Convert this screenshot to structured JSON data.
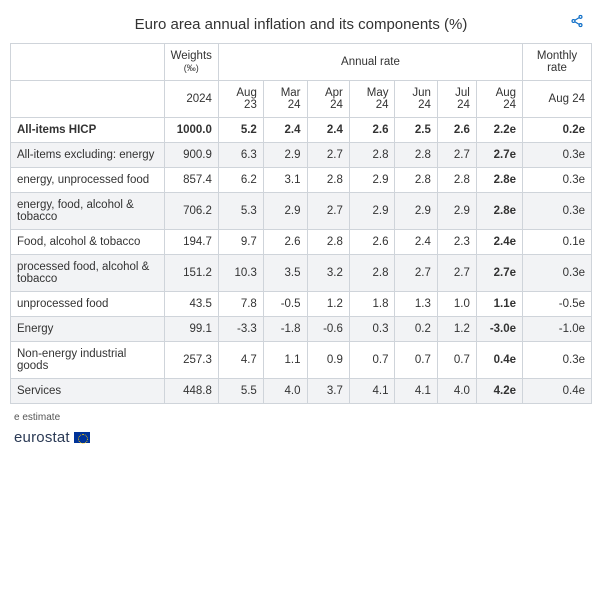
{
  "title": "Euro area annual inflation and its components (%)",
  "share_icon": "share-icon",
  "header": {
    "weights_label": "Weights",
    "weights_unit": "(‰)",
    "annual_label": "Annual rate",
    "monthly_label": "Monthly rate",
    "year": "2024",
    "periods": [
      "Aug 23",
      "Mar 24",
      "Apr 24",
      "May 24",
      "Jun 24",
      "Jul 24",
      "Aug 24"
    ],
    "monthly_period": "Aug 24"
  },
  "rows": [
    {
      "label": "All-items HICP",
      "bold": true,
      "weight": "1000.0",
      "values": [
        "5.2",
        "2.4",
        "2.4",
        "2.6",
        "2.5",
        "2.6",
        "2.2e"
      ],
      "monthly": "0.2e",
      "stripe": "even"
    },
    {
      "label": "All-items excluding: energy",
      "bold": false,
      "weight": "900.9",
      "values": [
        "6.3",
        "2.9",
        "2.7",
        "2.8",
        "2.8",
        "2.7",
        "2.7e"
      ],
      "monthly": "0.3e",
      "stripe": "odd"
    },
    {
      "label": " energy, unprocessed food",
      "bold": false,
      "weight": "857.4",
      "values": [
        "6.2",
        "3.1",
        "2.8",
        "2.9",
        "2.8",
        "2.8",
        "2.8e"
      ],
      "monthly": "0.3e",
      "stripe": "even"
    },
    {
      "label": " energy, food, alcohol & tobacco",
      "bold": false,
      "weight": "706.2",
      "values": [
        "5.3",
        "2.9",
        "2.7",
        "2.9",
        "2.9",
        "2.9",
        "2.8e"
      ],
      "monthly": "0.3e",
      "stripe": "odd"
    },
    {
      "label": "Food, alcohol & tobacco",
      "bold": false,
      "weight": "194.7",
      "values": [
        "9.7",
        "2.6",
        "2.8",
        "2.6",
        "2.4",
        "2.3",
        "2.4e"
      ],
      "monthly": "0.1e",
      "stripe": "even"
    },
    {
      "label": " processed food, alcohol & tobacco",
      "bold": false,
      "weight": "151.2",
      "values": [
        "10.3",
        "3.5",
        "3.2",
        "2.8",
        "2.7",
        "2.7",
        "2.7e"
      ],
      "monthly": "0.3e",
      "stripe": "odd"
    },
    {
      "label": " unprocessed food",
      "bold": false,
      "weight": "43.5",
      "values": [
        "7.8",
        "-0.5",
        "1.2",
        "1.8",
        "1.3",
        "1.0",
        "1.1e"
      ],
      "monthly": "-0.5e",
      "stripe": "even"
    },
    {
      "label": "Energy",
      "bold": false,
      "weight": "99.1",
      "values": [
        "-3.3",
        "-1.8",
        "-0.6",
        "0.3",
        "0.2",
        "1.2",
        "-3.0e"
      ],
      "monthly": "-1.0e",
      "stripe": "odd"
    },
    {
      "label": "Non-energy industrial goods",
      "bold": false,
      "weight": "257.3",
      "values": [
        "4.7",
        "1.1",
        "0.9",
        "0.7",
        "0.7",
        "0.7",
        "0.4e"
      ],
      "monthly": "0.3e",
      "stripe": "even"
    },
    {
      "label": "Services",
      "bold": false,
      "weight": "448.8",
      "values": [
        "5.5",
        "4.0",
        "3.7",
        "4.1",
        "4.1",
        "4.0",
        "4.2e"
      ],
      "monthly": "0.4e",
      "stripe": "odd"
    }
  ],
  "footnote": "e estimate",
  "logo_text": "eurostat",
  "style": {
    "border_color": "#cfd4da",
    "stripe_odd_bg": "#f2f3f5",
    "stripe_even_bg": "#ffffff",
    "text_color": "#333333",
    "accent_color": "#0e6ec7",
    "logo_color": "#2b3a55",
    "last_annual_col_bold": true
  }
}
